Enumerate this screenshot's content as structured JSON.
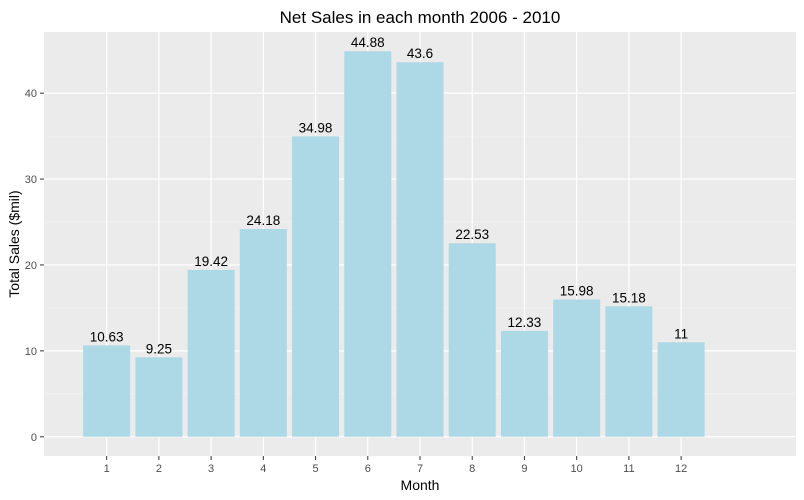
{
  "chart_data": {
    "type": "bar",
    "title": "Net Sales in each month 2006 - 2010",
    "xlabel": "Month",
    "ylabel": "Total Sales ($mil)",
    "categories": [
      "1",
      "2",
      "3",
      "4",
      "5",
      "6",
      "7",
      "8",
      "9",
      "10",
      "11",
      "12"
    ],
    "values": [
      10.63,
      9.25,
      19.42,
      24.18,
      34.98,
      44.88,
      43.6,
      22.53,
      12.33,
      15.98,
      15.18,
      11
    ],
    "data_labels": [
      "10.63",
      "9.25",
      "19.42",
      "24.18",
      "34.98",
      "44.88",
      "43.6",
      "22.53",
      "12.33",
      "15.98",
      "15.18",
      "11"
    ],
    "yticks": [
      0,
      10,
      20,
      30,
      40
    ],
    "ylim": [
      -2.24,
      47.12
    ],
    "xlim": [
      -0.2,
      14.2
    ],
    "grid": true,
    "colors": {
      "bar": "#ADD8E6",
      "panel": "#EBEBEB",
      "grid_major": "#FFFFFF",
      "grid_minor": "#F2F2F2",
      "tick_text": "#4D4D4D"
    }
  }
}
